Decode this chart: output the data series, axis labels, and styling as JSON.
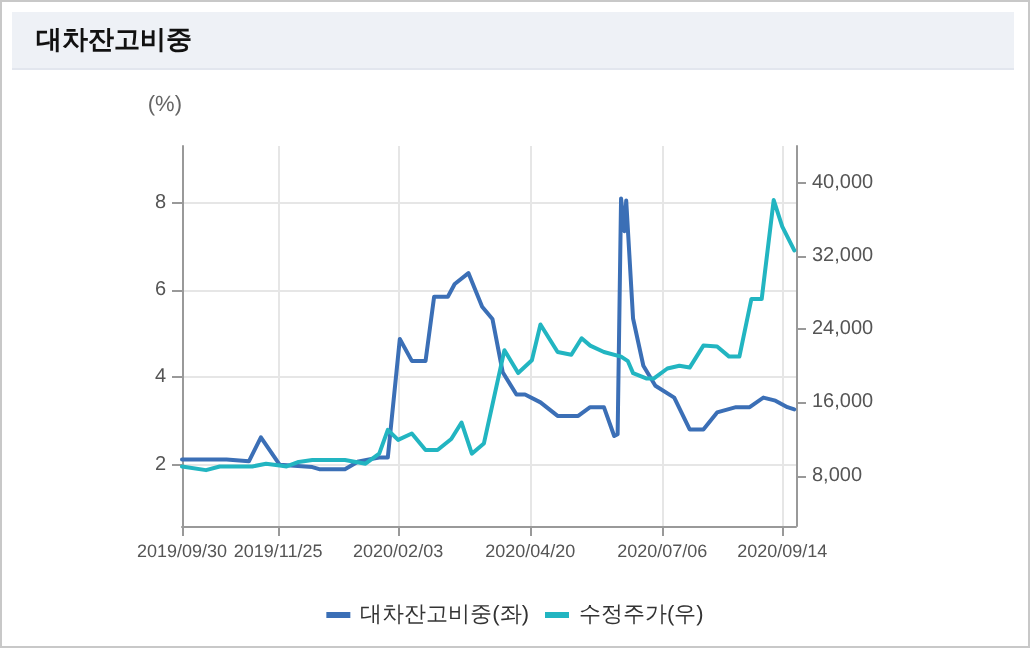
{
  "chart_data": {
    "type": "line",
    "title": "대차잔고비중",
    "ylabel": "(%)",
    "xlim": [
      "2019-09-30",
      "2020-09-22"
    ],
    "xticks": [
      {
        "value": "2019-09-30",
        "label": "2019/09/30"
      },
      {
        "value": "2019-11-25",
        "label": "2019/11/25"
      },
      {
        "value": "2020-02-03",
        "label": "2020/02/03"
      },
      {
        "value": "2020-04-20",
        "label": "2020/04/20"
      },
      {
        "value": "2020-07-06",
        "label": "2020/07/06"
      },
      {
        "value": "2020-09-14",
        "label": "2020/09/14"
      }
    ],
    "ylim": [
      0.6,
      9.3
    ],
    "yticks": [
      2,
      4,
      6,
      8
    ],
    "y2lim": [
      2500,
      44000
    ],
    "y2ticks": [
      {
        "value": 8000,
        "label": "8,000"
      },
      {
        "value": 16000,
        "label": "16,000"
      },
      {
        "value": 24000,
        "label": "24,000"
      },
      {
        "value": 32000,
        "label": "32,000"
      },
      {
        "value": 40000,
        "label": "40,000"
      }
    ],
    "grid": true,
    "legend": "bottom",
    "marker": "none",
    "line_style": "solid",
    "series": [
      {
        "name": "대차잔고비중(좌)",
        "color": "#3b6fb6",
        "x": [
          "2019-09-30",
          "2019-10-26",
          "2019-11-08",
          "2019-11-15",
          "2019-11-26",
          "2019-12-15",
          "2019-12-19",
          "2020-01-03",
          "2020-01-11",
          "2020-01-23",
          "2020-01-28",
          "2020-02-04",
          "2020-02-11",
          "2020-02-19",
          "2020-02-24",
          "2020-03-03",
          "2020-03-07",
          "2020-03-15",
          "2020-03-23",
          "2020-03-29",
          "2020-04-04",
          "2020-04-12",
          "2020-04-17",
          "2020-04-26",
          "2020-05-06",
          "2020-05-18",
          "2020-05-25",
          "2020-06-02",
          "2020-06-08",
          "2020-06-10",
          "2020-06-12",
          "2020-06-14",
          "2020-06-15",
          "2020-06-19",
          "2020-06-25",
          "2020-07-02",
          "2020-07-13",
          "2020-07-22",
          "2020-07-30",
          "2020-08-07",
          "2020-08-18",
          "2020-08-26",
          "2020-09-03",
          "2020-09-10",
          "2020-09-17",
          "2020-09-21"
        ],
        "values": [
          2.12,
          2.12,
          2.08,
          2.63,
          2.0,
          1.95,
          1.9,
          1.9,
          2.08,
          2.17,
          2.17,
          4.88,
          4.38,
          4.38,
          5.85,
          5.85,
          6.14,
          6.39,
          5.62,
          5.34,
          4.12,
          3.61,
          3.61,
          3.43,
          3.12,
          3.12,
          3.32,
          3.32,
          2.66,
          2.7,
          8.1,
          7.35,
          8.05,
          5.35,
          4.27,
          3.81,
          3.54,
          2.81,
          2.81,
          3.2,
          3.32,
          3.32,
          3.54,
          3.47,
          3.32,
          3.27
        ]
      },
      {
        "name": "수정주가(우)",
        "color": "#22b5c1",
        "axis": "y2",
        "x": [
          "2019-09-30",
          "2019-10-14",
          "2019-10-22",
          "2019-11-10",
          "2019-11-18",
          "2019-11-26",
          "2019-11-30",
          "2019-12-07",
          "2019-12-15",
          "2020-01-03",
          "2020-01-15",
          "2020-01-23",
          "2020-01-28",
          "2020-02-03",
          "2020-02-11",
          "2020-02-19",
          "2020-02-26",
          "2020-03-05",
          "2020-03-11",
          "2020-03-17",
          "2020-03-24",
          "2020-03-30",
          "2020-04-05",
          "2020-04-13",
          "2020-04-21",
          "2020-04-26",
          "2020-05-06",
          "2020-05-14",
          "2020-05-20",
          "2020-05-25",
          "2020-06-02",
          "2020-06-12",
          "2020-06-16",
          "2020-06-19",
          "2020-06-27",
          "2020-07-01",
          "2020-07-09",
          "2020-07-16",
          "2020-07-22",
          "2020-07-30",
          "2020-08-07",
          "2020-08-14",
          "2020-08-20",
          "2020-08-27",
          "2020-09-02",
          "2020-09-09",
          "2020-09-14",
          "2020-09-21"
        ],
        "values": [
          9000,
          8600,
          9000,
          9000,
          9300,
          9100,
          9000,
          9500,
          9700,
          9700,
          9300,
          10400,
          13000,
          11900,
          12600,
          10800,
          10800,
          12000,
          13800,
          10400,
          11500,
          16600,
          21700,
          19200,
          20600,
          24500,
          21500,
          21200,
          23000,
          22200,
          21500,
          21000,
          20500,
          19200,
          18600,
          18600,
          19700,
          20000,
          19800,
          22200,
          22100,
          21000,
          21000,
          27300,
          27300,
          38100,
          35200,
          32600
        ]
      }
    ]
  }
}
